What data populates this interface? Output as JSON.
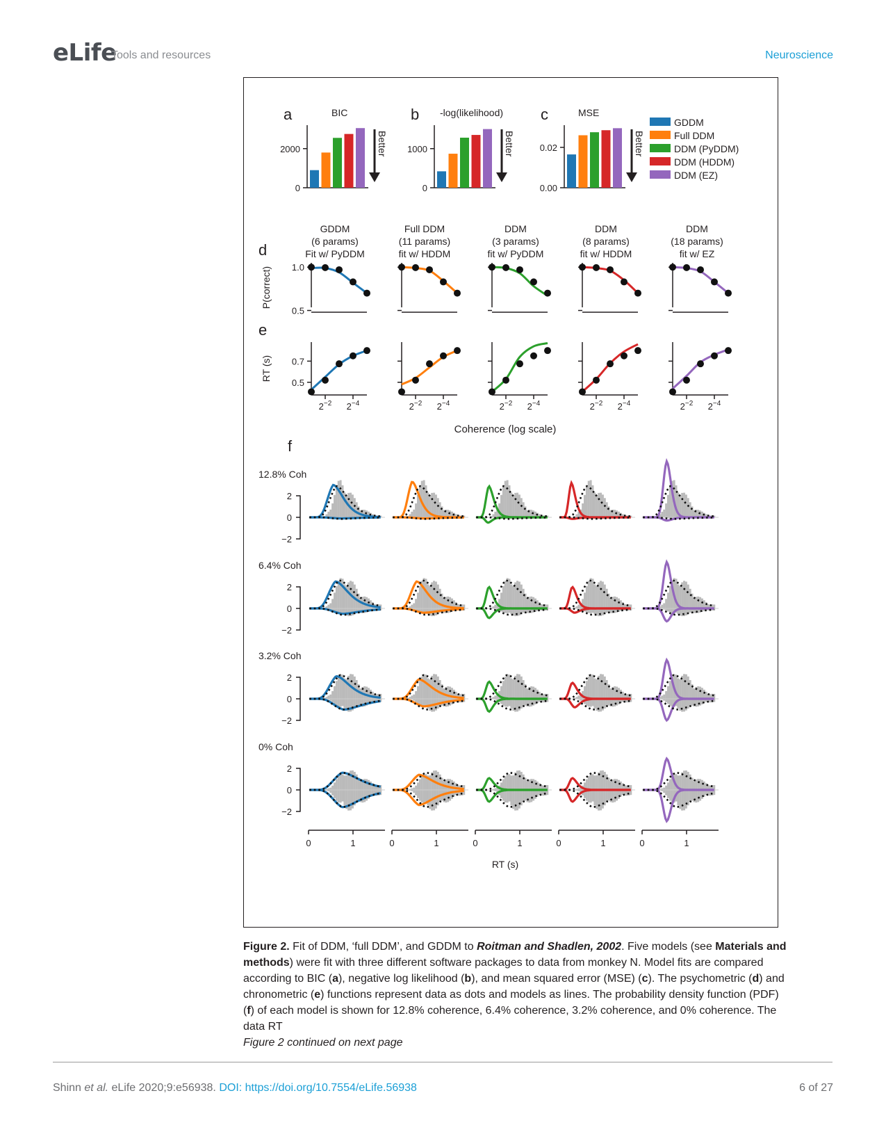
{
  "header": {
    "logo": "eLife",
    "section": "Tools and resources",
    "subject": "Neuroscience"
  },
  "colors": {
    "GDDM": "#1f77b4",
    "FullDDM": "#ff7f0e",
    "PyDDM": "#2ca02c",
    "HDDM": "#d62728",
    "EZ": "#9467bd",
    "data": "#bbbbbb"
  },
  "legend": [
    "GDDM",
    "Full DDM",
    "DDM (PyDDM)",
    "DDM (HDDM)",
    "DDM (EZ)"
  ],
  "panels": {
    "a": {
      "letter": "a",
      "title": "BIC",
      "yticks": [
        "2000",
        "0"
      ],
      "arrow": "Better"
    },
    "b": {
      "letter": "b",
      "title": "-log(likelihood)",
      "yticks": [
        "1000",
        "0"
      ],
      "arrow": "Better"
    },
    "c": {
      "letter": "c",
      "title": "MSE",
      "yticks": [
        "0.02",
        "0.00"
      ],
      "arrow": "Better"
    },
    "d": {
      "letter": "d",
      "ylabel": "P(correct)",
      "yticks": [
        "1.0",
        "0.5"
      ]
    },
    "e": {
      "letter": "e",
      "ylabel": "RT (s)",
      "yticks": [
        "0.7",
        "0.5"
      ],
      "xticks": [
        "2−2",
        "2−4"
      ],
      "xlabel": "Coherence (log scale)"
    },
    "f": {
      "letter": "f",
      "xlabel": "RT (s)",
      "xticks": [
        "0",
        "1"
      ],
      "yticks": [
        "2",
        "0",
        "−2"
      ],
      "rows": [
        "12.8% Coh",
        "6.4% Coh",
        "3.2% Coh",
        "0% Coh"
      ]
    }
  },
  "model_columns": [
    {
      "l1": "GDDM",
      "l2": "(6 params)",
      "l3": "Fit w/ PyDDM"
    },
    {
      "l1": "Full DDM",
      "l2": "(11 params)",
      "l3": "fit w/ HDDM"
    },
    {
      "l1": "DDM",
      "l2": "(3 params)",
      "l3": "fit w/ PyDDM"
    },
    {
      "l1": "DDM",
      "l2": "(8 params)",
      "l3": "fit w/ HDDM"
    },
    {
      "l1": "DDM",
      "l2": "(18 params)",
      "l3": "fit w/ EZ"
    }
  ],
  "chart_data": [
    {
      "panel": "a",
      "type": "bar",
      "title": "BIC",
      "categories": [
        "GDDM",
        "Full DDM",
        "DDM (PyDDM)",
        "DDM (HDDM)",
        "DDM (EZ)"
      ],
      "values": [
        900,
        1800,
        2550,
        2750,
        3050
      ],
      "ylim": [
        0,
        3200
      ]
    },
    {
      "panel": "b",
      "type": "bar",
      "title": "-log(likelihood)",
      "categories": [
        "GDDM",
        "Full DDM",
        "DDM (PyDDM)",
        "DDM (HDDM)",
        "DDM (EZ)"
      ],
      "values": [
        420,
        870,
        1280,
        1350,
        1500
      ],
      "ylim": [
        0,
        1600
      ]
    },
    {
      "panel": "c",
      "type": "bar",
      "title": "MSE",
      "categories": [
        "GDDM",
        "Full DDM",
        "DDM (PyDDM)",
        "DDM (HDDM)",
        "DDM (EZ)"
      ],
      "values": [
        0.0165,
        0.026,
        0.0275,
        0.0285,
        0.0295
      ],
      "ylim": [
        0,
        0.031
      ]
    },
    {
      "panel": "d",
      "type": "line",
      "ylabel": "P(correct)",
      "x_log2": [
        -5,
        -4,
        -3,
        -2,
        -1
      ],
      "data_points": [
        1.0,
        0.995,
        0.97,
        0.83,
        0.7
      ],
      "ylim": [
        0.48,
        1.05
      ],
      "series": [
        {
          "name": "GDDM",
          "values": [
            0.99,
            0.99,
            0.94,
            0.82,
            0.7
          ]
        },
        {
          "name": "Full DDM",
          "values": [
            1.0,
            0.99,
            0.96,
            0.84,
            0.7
          ]
        },
        {
          "name": "DDM (PyDDM)",
          "values": [
            1.0,
            0.99,
            0.93,
            0.78,
            0.67
          ]
        },
        {
          "name": "DDM (HDDM)",
          "values": [
            1.0,
            0.99,
            0.96,
            0.85,
            0.7
          ]
        },
        {
          "name": "DDM (EZ)",
          "values": [
            1.0,
            0.99,
            0.95,
            0.83,
            0.7
          ]
        }
      ]
    },
    {
      "panel": "e",
      "type": "line",
      "ylabel": "RT (s)",
      "x_log2": [
        -5,
        -4,
        -3,
        -2,
        -1
      ],
      "data_points": [
        0.41,
        0.52,
        0.675,
        0.75,
        0.8
      ],
      "ylim": [
        0.38,
        0.88
      ],
      "series": [
        {
          "name": "GDDM",
          "values": [
            0.43,
            0.55,
            0.67,
            0.75,
            0.8
          ]
        },
        {
          "name": "Full DDM",
          "values": [
            0.48,
            0.54,
            0.64,
            0.74,
            0.8
          ]
        },
        {
          "name": "DDM (PyDDM)",
          "values": [
            0.41,
            0.53,
            0.74,
            0.84,
            0.87
          ]
        },
        {
          "name": "DDM (HDDM)",
          "values": [
            0.41,
            0.53,
            0.68,
            0.79,
            0.86
          ]
        },
        {
          "name": "DDM (EZ)",
          "values": [
            0.44,
            0.56,
            0.69,
            0.76,
            0.81
          ]
        }
      ]
    },
    {
      "panel": "f",
      "type": "area",
      "xlabel": "RT (s)",
      "xlim": [
        0,
        1.6
      ],
      "ylim": [
        -2.2,
        2.4
      ],
      "rows": [
        {
          "coherence": "12.8% Coh",
          "data_correct": {
            "peak": 2.9,
            "mode": 0.62,
            "width": 0.26
          },
          "data_error": {
            "peak": 0.15,
            "mode": 0.7,
            "width": 0.3
          },
          "models": [
            {
              "name": "GDDM",
              "correct": {
                "peak": 3.0,
                "mode": 0.55,
                "width": 0.25
              },
              "error": {
                "peak": 0.1,
                "mode": 0.7,
                "width": 0.3
              }
            },
            {
              "name": "Full DDM",
              "correct": {
                "peak": 3.3,
                "mode": 0.45,
                "width": 0.22
              },
              "error": {
                "peak": 0.1,
                "mode": 0.7,
                "width": 0.3
              }
            },
            {
              "name": "DDM (PyDDM)",
              "correct": {
                "peak": 2.9,
                "mode": 0.3,
                "width": 0.22
              },
              "error": {
                "peak": 0.5,
                "mode": 0.28,
                "width": 0.2
              }
            },
            {
              "name": "DDM (HDDM)",
              "correct": {
                "peak": 3.2,
                "mode": 0.28,
                "width": 0.2
              },
              "error": {
                "peak": 0.15,
                "mode": 0.3,
                "width": 0.25
              }
            },
            {
              "name": "DDM (EZ)",
              "correct": {
                "peak": 5.2,
                "mode": 0.55,
                "width": 0.12
              },
              "error": {
                "peak": 0.3,
                "mode": 0.55,
                "width": 0.15
              }
            }
          ]
        },
        {
          "coherence": "6.4% Coh",
          "data_correct": {
            "peak": 2.6,
            "mode": 0.68,
            "width": 0.28
          },
          "data_error": {
            "peak": 0.6,
            "mode": 0.75,
            "width": 0.3
          },
          "models": [
            {
              "name": "GDDM",
              "correct": {
                "peak": 2.5,
                "mode": 0.6,
                "width": 0.28
              },
              "error": {
                "peak": 0.5,
                "mode": 0.75,
                "width": 0.3
              }
            },
            {
              "name": "Full DDM",
              "correct": {
                "peak": 2.5,
                "mode": 0.55,
                "width": 0.25
              },
              "error": {
                "peak": 0.4,
                "mode": 0.7,
                "width": 0.3
              }
            },
            {
              "name": "DDM (PyDDM)",
              "correct": {
                "peak": 2.0,
                "mode": 0.3,
                "width": 0.2
              },
              "error": {
                "peak": 0.9,
                "mode": 0.3,
                "width": 0.2
              }
            },
            {
              "name": "DDM (HDDM)",
              "correct": {
                "peak": 2.0,
                "mode": 0.3,
                "width": 0.2
              },
              "error": {
                "peak": 0.4,
                "mode": 0.35,
                "width": 0.2
              }
            },
            {
              "name": "DDM (EZ)",
              "correct": {
                "peak": 4.3,
                "mode": 0.55,
                "width": 0.12
              },
              "error": {
                "peak": 1.2,
                "mode": 0.55,
                "width": 0.12
              }
            }
          ]
        },
        {
          "coherence": "3.2% Coh",
          "data_correct": {
            "peak": 2.2,
            "mode": 0.7,
            "width": 0.3
          },
          "data_error": {
            "peak": 1.0,
            "mode": 0.75,
            "width": 0.3
          },
          "models": [
            {
              "name": "GDDM",
              "correct": {
                "peak": 2.1,
                "mode": 0.62,
                "width": 0.28
              },
              "error": {
                "peak": 1.0,
                "mode": 0.78,
                "width": 0.3
              }
            },
            {
              "name": "Full DDM",
              "correct": {
                "peak": 1.8,
                "mode": 0.6,
                "width": 0.28
              },
              "error": {
                "peak": 0.7,
                "mode": 0.7,
                "width": 0.3
              }
            },
            {
              "name": "DDM (PyDDM)",
              "correct": {
                "peak": 1.6,
                "mode": 0.3,
                "width": 0.22
              },
              "error": {
                "peak": 1.2,
                "mode": 0.3,
                "width": 0.2
              }
            },
            {
              "name": "DDM (HDDM)",
              "correct": {
                "peak": 1.5,
                "mode": 0.3,
                "width": 0.22
              },
              "error": {
                "peak": 0.8,
                "mode": 0.35,
                "width": 0.2
              }
            },
            {
              "name": "DDM (EZ)",
              "correct": {
                "peak": 3.6,
                "mode": 0.55,
                "width": 0.12
              },
              "error": {
                "peak": 2.0,
                "mode": 0.55,
                "width": 0.12
              }
            }
          ]
        },
        {
          "coherence": "0% Coh",
          "data_correct": {
            "peak": 1.6,
            "mode": 0.75,
            "width": 0.3
          },
          "data_error": {
            "peak": 1.6,
            "mode": 0.75,
            "width": 0.3
          },
          "models": [
            {
              "name": "GDDM",
              "correct": {
                "peak": 1.6,
                "mode": 0.75,
                "width": 0.3
              },
              "error": {
                "peak": 1.6,
                "mode": 0.75,
                "width": 0.3
              }
            },
            {
              "name": "Full DDM",
              "correct": {
                "peak": 1.4,
                "mode": 0.6,
                "width": 0.3
              },
              "error": {
                "peak": 1.4,
                "mode": 0.6,
                "width": 0.3
              }
            },
            {
              "name": "DDM (PyDDM)",
              "correct": {
                "peak": 1.1,
                "mode": 0.3,
                "width": 0.22
              },
              "error": {
                "peak": 1.1,
                "mode": 0.3,
                "width": 0.22
              }
            },
            {
              "name": "DDM (HDDM)",
              "correct": {
                "peak": 1.1,
                "mode": 0.3,
                "width": 0.22
              },
              "error": {
                "peak": 1.1,
                "mode": 0.3,
                "width": 0.22
              }
            },
            {
              "name": "DDM (EZ)",
              "correct": {
                "peak": 2.9,
                "mode": 0.55,
                "width": 0.12
              },
              "error": {
                "peak": 2.9,
                "mode": 0.55,
                "width": 0.12
              }
            }
          ]
        }
      ]
    }
  ],
  "caption": {
    "label": "Figure 2.",
    "t1": " Fit of DDM, ‘full DDM’, and GDDM to ",
    "ref": "Roitman and Shadlen, 2002",
    "t2": ". Five models (see ",
    "mm": "Materials and methods",
    "t3": ") were fit with three different software packages to data from monkey N. Model fits are compared according to BIC (",
    "a": "a",
    "t4": "), negative log likelihood (",
    "b": "b",
    "t5": "), and mean squared error (MSE) (",
    "c": "c",
    "t6": "). The psychometric (",
    "d": "d",
    "t7": ") and chronometric (",
    "e": "e",
    "t8": ") functions represent data as dots and models as lines. The probability density function (PDF) (",
    "f": "f",
    "t9": ") of each model is shown for 12.8% coherence, 6.4% coherence, 3.2% coherence, and 0% coherence. The data RT",
    "continued": "Figure 2 continued on next page"
  },
  "footer": {
    "authors": "Shinn ",
    "etal": "et al.",
    "journal": " eLife 2020;9:e56938. ",
    "doi": "DOI: https://doi.org/10.7554/eLife.56938",
    "page": "6 of 27"
  }
}
